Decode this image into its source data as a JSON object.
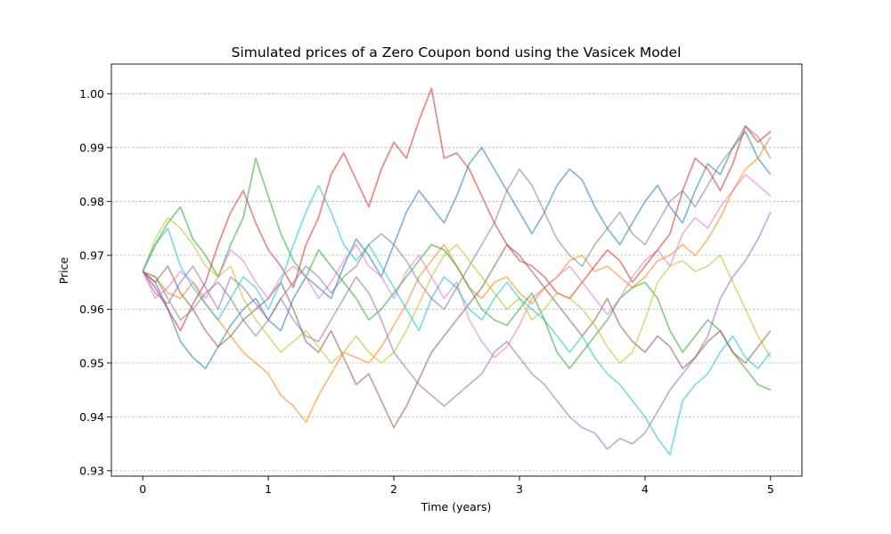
{
  "chart_data": {
    "type": "line",
    "title": "Simulated prices of a Zero Coupon bond using the Vasicek Model",
    "xlabel": "Time (years)",
    "ylabel": "Price",
    "xlim": [
      -0.25,
      5.25
    ],
    "ylim": [
      0.929,
      1.0055
    ],
    "xticks": [
      0,
      1,
      2,
      3,
      4,
      5
    ],
    "xtick_labels": [
      "0",
      "1",
      "2",
      "3",
      "4",
      "5"
    ],
    "yticks": [
      0.93,
      0.94,
      0.95,
      0.96,
      0.97,
      0.98,
      0.99,
      1.0
    ],
    "ytick_labels": [
      "0.93",
      "0.94",
      "0.95",
      "0.96",
      "0.97",
      "0.98",
      "0.99",
      "1.00"
    ],
    "grid": "y-major-dashed",
    "legend": "none",
    "x": [
      0,
      0.1,
      0.2,
      0.3,
      0.4,
      0.5,
      0.6,
      0.7,
      0.8,
      0.9,
      1.0,
      1.1,
      1.2,
      1.3,
      1.4,
      1.5,
      1.6,
      1.7,
      1.8,
      1.9,
      2.0,
      2.1,
      2.2,
      2.3,
      2.4,
      2.5,
      2.6,
      2.7,
      2.8,
      2.9,
      3.0,
      3.1,
      3.2,
      3.3,
      3.4,
      3.5,
      3.6,
      3.7,
      3.8,
      3.9,
      4.0,
      4.1,
      4.2,
      4.3,
      4.4,
      4.5,
      4.6,
      4.7,
      4.8,
      4.9,
      5.0
    ],
    "series": [
      {
        "color": "#1f77b4",
        "values": [
          0.967,
          0.965,
          0.96,
          0.954,
          0.951,
          0.949,
          0.953,
          0.957,
          0.96,
          0.962,
          0.958,
          0.956,
          0.962,
          0.966,
          0.964,
          0.962,
          0.968,
          0.973,
          0.97,
          0.966,
          0.972,
          0.978,
          0.982,
          0.979,
          0.976,
          0.981,
          0.987,
          0.99,
          0.986,
          0.982,
          0.978,
          0.974,
          0.978,
          0.983,
          0.986,
          0.984,
          0.979,
          0.975,
          0.972,
          0.976,
          0.98,
          0.983,
          0.979,
          0.976,
          0.982,
          0.987,
          0.985,
          0.99,
          0.993,
          0.988,
          0.985
        ]
      },
      {
        "color": "#ff7f0e",
        "values": [
          0.967,
          0.966,
          0.963,
          0.962,
          0.965,
          0.961,
          0.958,
          0.955,
          0.952,
          0.95,
          0.948,
          0.944,
          0.942,
          0.939,
          0.944,
          0.948,
          0.952,
          0.951,
          0.95,
          0.953,
          0.957,
          0.961,
          0.966,
          0.969,
          0.972,
          0.968,
          0.964,
          0.962,
          0.965,
          0.966,
          0.963,
          0.961,
          0.964,
          0.966,
          0.969,
          0.97,
          0.967,
          0.968,
          0.966,
          0.964,
          0.966,
          0.969,
          0.97,
          0.972,
          0.97,
          0.973,
          0.977,
          0.982,
          0.986,
          0.988,
          0.992
        ]
      },
      {
        "color": "#2ca02c",
        "values": [
          0.967,
          0.972,
          0.976,
          0.979,
          0.973,
          0.97,
          0.966,
          0.972,
          0.977,
          0.988,
          0.981,
          0.974,
          0.969,
          0.966,
          0.971,
          0.968,
          0.965,
          0.962,
          0.958,
          0.96,
          0.963,
          0.966,
          0.969,
          0.972,
          0.971,
          0.968,
          0.964,
          0.96,
          0.958,
          0.957,
          0.96,
          0.963,
          0.958,
          0.952,
          0.949,
          0.952,
          0.955,
          0.958,
          0.962,
          0.964,
          0.965,
          0.962,
          0.956,
          0.952,
          0.955,
          0.958,
          0.956,
          0.952,
          0.949,
          0.946,
          0.945
        ]
      },
      {
        "color": "#d62728",
        "values": [
          0.967,
          0.964,
          0.96,
          0.956,
          0.961,
          0.965,
          0.972,
          0.978,
          0.982,
          0.976,
          0.971,
          0.968,
          0.964,
          0.972,
          0.977,
          0.985,
          0.989,
          0.984,
          0.979,
          0.986,
          0.991,
          0.988,
          0.995,
          1.001,
          0.988,
          0.989,
          0.986,
          0.981,
          0.976,
          0.972,
          0.969,
          0.968,
          0.966,
          0.963,
          0.962,
          0.965,
          0.968,
          0.971,
          0.969,
          0.965,
          0.968,
          0.971,
          0.974,
          0.982,
          0.988,
          0.986,
          0.982,
          0.987,
          0.994,
          0.991,
          0.993
        ]
      },
      {
        "color": "#9467bd",
        "values": [
          0.967,
          0.963,
          0.961,
          0.965,
          0.968,
          0.964,
          0.96,
          0.966,
          0.964,
          0.961,
          0.958,
          0.962,
          0.958,
          0.955,
          0.954,
          0.958,
          0.962,
          0.966,
          0.963,
          0.958,
          0.952,
          0.949,
          0.946,
          0.944,
          0.942,
          0.944,
          0.946,
          0.948,
          0.952,
          0.954,
          0.951,
          0.948,
          0.946,
          0.943,
          0.94,
          0.938,
          0.937,
          0.934,
          0.936,
          0.935,
          0.937,
          0.941,
          0.945,
          0.948,
          0.951,
          0.955,
          0.962,
          0.966,
          0.969,
          0.973,
          0.978
        ]
      },
      {
        "color": "#8c564b",
        "values": [
          0.967,
          0.965,
          0.968,
          0.963,
          0.96,
          0.956,
          0.953,
          0.955,
          0.958,
          0.96,
          0.962,
          0.965,
          0.96,
          0.954,
          0.952,
          0.956,
          0.951,
          0.946,
          0.948,
          0.943,
          0.938,
          0.942,
          0.947,
          0.952,
          0.955,
          0.958,
          0.961,
          0.964,
          0.968,
          0.972,
          0.97,
          0.967,
          0.964,
          0.961,
          0.958,
          0.955,
          0.958,
          0.962,
          0.957,
          0.954,
          0.952,
          0.955,
          0.953,
          0.949,
          0.951,
          0.954,
          0.956,
          0.952,
          0.95,
          0.953,
          0.956
        ]
      },
      {
        "color": "#e377c2",
        "values": [
          0.967,
          0.962,
          0.964,
          0.967,
          0.965,
          0.962,
          0.966,
          0.971,
          0.969,
          0.965,
          0.962,
          0.966,
          0.968,
          0.966,
          0.962,
          0.965,
          0.969,
          0.972,
          0.968,
          0.966,
          0.962,
          0.967,
          0.97,
          0.966,
          0.962,
          0.965,
          0.958,
          0.954,
          0.951,
          0.953,
          0.957,
          0.962,
          0.964,
          0.966,
          0.968,
          0.965,
          0.962,
          0.959,
          0.962,
          0.966,
          0.969,
          0.971,
          0.968,
          0.974,
          0.977,
          0.975,
          0.979,
          0.982,
          0.985,
          0.983,
          0.981
        ]
      },
      {
        "color": "#7f7f7f",
        "values": [
          0.967,
          0.966,
          0.962,
          0.958,
          0.96,
          0.963,
          0.965,
          0.962,
          0.958,
          0.955,
          0.958,
          0.962,
          0.965,
          0.968,
          0.966,
          0.963,
          0.966,
          0.968,
          0.972,
          0.974,
          0.972,
          0.969,
          0.965,
          0.962,
          0.96,
          0.964,
          0.968,
          0.972,
          0.976,
          0.982,
          0.986,
          0.983,
          0.978,
          0.973,
          0.97,
          0.968,
          0.972,
          0.975,
          0.978,
          0.974,
          0.972,
          0.976,
          0.98,
          0.982,
          0.979,
          0.983,
          0.987,
          0.99,
          0.994,
          0.992,
          0.988
        ]
      },
      {
        "color": "#bcbd22",
        "values": [
          0.967,
          0.973,
          0.977,
          0.975,
          0.972,
          0.968,
          0.966,
          0.968,
          0.962,
          0.958,
          0.955,
          0.952,
          0.954,
          0.956,
          0.953,
          0.95,
          0.952,
          0.955,
          0.952,
          0.95,
          0.952,
          0.956,
          0.961,
          0.966,
          0.97,
          0.972,
          0.969,
          0.966,
          0.963,
          0.96,
          0.962,
          0.958,
          0.96,
          0.963,
          0.962,
          0.96,
          0.957,
          0.953,
          0.95,
          0.952,
          0.958,
          0.965,
          0.968,
          0.969,
          0.967,
          0.968,
          0.97,
          0.965,
          0.96,
          0.955,
          0.951
        ]
      },
      {
        "color": "#17becf",
        "values": [
          0.967,
          0.972,
          0.975,
          0.968,
          0.964,
          0.961,
          0.958,
          0.962,
          0.966,
          0.964,
          0.96,
          0.965,
          0.972,
          0.978,
          0.983,
          0.978,
          0.972,
          0.969,
          0.972,
          0.968,
          0.964,
          0.96,
          0.956,
          0.962,
          0.966,
          0.964,
          0.96,
          0.958,
          0.962,
          0.965,
          0.962,
          0.96,
          0.958,
          0.955,
          0.952,
          0.955,
          0.951,
          0.948,
          0.946,
          0.943,
          0.94,
          0.936,
          0.933,
          0.943,
          0.946,
          0.948,
          0.952,
          0.955,
          0.951,
          0.949,
          0.952
        ]
      }
    ]
  }
}
